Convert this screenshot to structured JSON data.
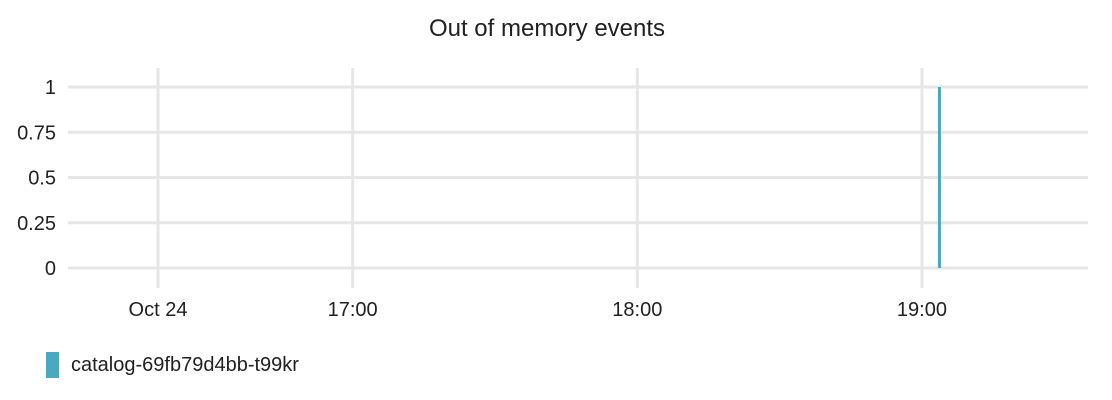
{
  "chart_data": {
    "type": "line",
    "title": "Out of memory events",
    "x_ticks": [
      "Oct 24",
      "17:00",
      "18:00",
      "19:00"
    ],
    "x_range": [
      "Oct 24 16:00",
      "Oct 24 19:35"
    ],
    "y_ticks": [
      "0",
      "0.25",
      "0.5",
      "0.75",
      "1"
    ],
    "ylim": [
      0,
      1
    ],
    "grid": true,
    "legend_placement": "bottom-left",
    "series": [
      {
        "name": "catalog-69fb79d4bb-t99kr",
        "color": "#4aa9bf",
        "points": [
          {
            "x": "Oct 24 19:02",
            "y": 0
          },
          {
            "x": "Oct 24 19:02",
            "y": 1
          }
        ]
      }
    ]
  },
  "colors": {
    "grid": "#e6e6e6",
    "text": "#212121"
  }
}
